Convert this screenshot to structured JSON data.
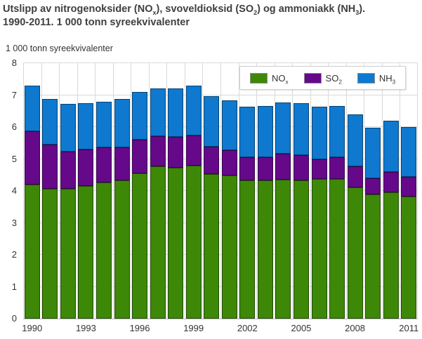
{
  "title": {
    "line1_segments": [
      {
        "t": "Utslipp av nitrogenoksider (NO"
      },
      {
        "sub": "x"
      },
      {
        "t": "), svoveldioksid (SO"
      },
      {
        "sub": "2"
      },
      {
        "t": ") og ammoniakk (NH"
      },
      {
        "sub": "3"
      },
      {
        "t": ")."
      }
    ],
    "line2_segments": [
      {
        "t": "1990-2011. 1 000 tonn syreekvivalenter"
      }
    ]
  },
  "y_axis_unit_label": "1 000 tonn syreekvivalenter",
  "colors": {
    "grid": "#d9d9d9",
    "axis_line": "#bdbdbd",
    "bar_border": "rgba(0,0,0,0.45)",
    "text": "#333333",
    "title_text": "#3f3f3f",
    "legend_border": "#cfcfcf",
    "nox_green": "#3e8808",
    "so2_purple": "#65098a",
    "nh3_blue": "#0e79cf"
  },
  "chart_data": {
    "type": "bar",
    "stacked": true,
    "title": "Utslipp av nitrogenoksider (NOx), svoveldioksid (SO2) og ammoniakk (NH3). 1990-2011. 1 000 tonn syreekvivalenter",
    "ylabel": "1 000 tonn syreekvivalenter",
    "xlabel": "",
    "ylim": [
      0,
      8
    ],
    "y_tick_step": 1,
    "y_tick_labels": [
      "0",
      "1",
      "2",
      "3",
      "4",
      "5",
      "6",
      "7",
      "8"
    ],
    "grid": true,
    "legend_position": "top-right-inside",
    "categories": [
      "1990",
      "1991",
      "1992",
      "1993",
      "1994",
      "1995",
      "1996",
      "1997",
      "1998",
      "1999",
      "2000",
      "2001",
      "2002",
      "2003",
      "2004",
      "2005",
      "2006",
      "2007",
      "2008",
      "2009",
      "2010",
      "2011"
    ],
    "x_tick_indices": [
      0,
      3,
      6,
      9,
      12,
      15,
      18,
      21
    ],
    "x_tick_labels": [
      "1990",
      "1993",
      "1996",
      "1999",
      "2002",
      "2005",
      "2008",
      "2011"
    ],
    "series": [
      {
        "name": "NOx",
        "name_segments": [
          {
            "t": "NO"
          },
          {
            "sub": "x"
          }
        ],
        "color": "#3e8808",
        "values": [
          4.2,
          4.06,
          4.06,
          4.16,
          4.26,
          4.32,
          4.56,
          4.76,
          4.73,
          4.8,
          4.53,
          4.49,
          4.34,
          4.33,
          4.36,
          4.32,
          4.37,
          4.38,
          4.12,
          3.89,
          3.96,
          3.82
        ]
      },
      {
        "name": "SO2",
        "name_segments": [
          {
            "t": "SO"
          },
          {
            "sub": "2"
          }
        ],
        "color": "#65098a",
        "values": [
          1.66,
          1.39,
          1.18,
          1.14,
          1.1,
          1.05,
          1.04,
          0.95,
          0.96,
          0.93,
          0.86,
          0.79,
          0.71,
          0.73,
          0.81,
          0.8,
          0.63,
          0.67,
          0.65,
          0.51,
          0.64,
          0.63
        ]
      },
      {
        "name": "NH3",
        "name_segments": [
          {
            "t": "NH"
          },
          {
            "sub": "3"
          }
        ],
        "color": "#0e79cf",
        "values": [
          1.44,
          1.44,
          1.49,
          1.44,
          1.44,
          1.52,
          1.51,
          1.5,
          1.52,
          1.57,
          1.57,
          1.55,
          1.59,
          1.61,
          1.61,
          1.62,
          1.64,
          1.62,
          1.63,
          1.58,
          1.6,
          1.54
        ]
      }
    ]
  }
}
